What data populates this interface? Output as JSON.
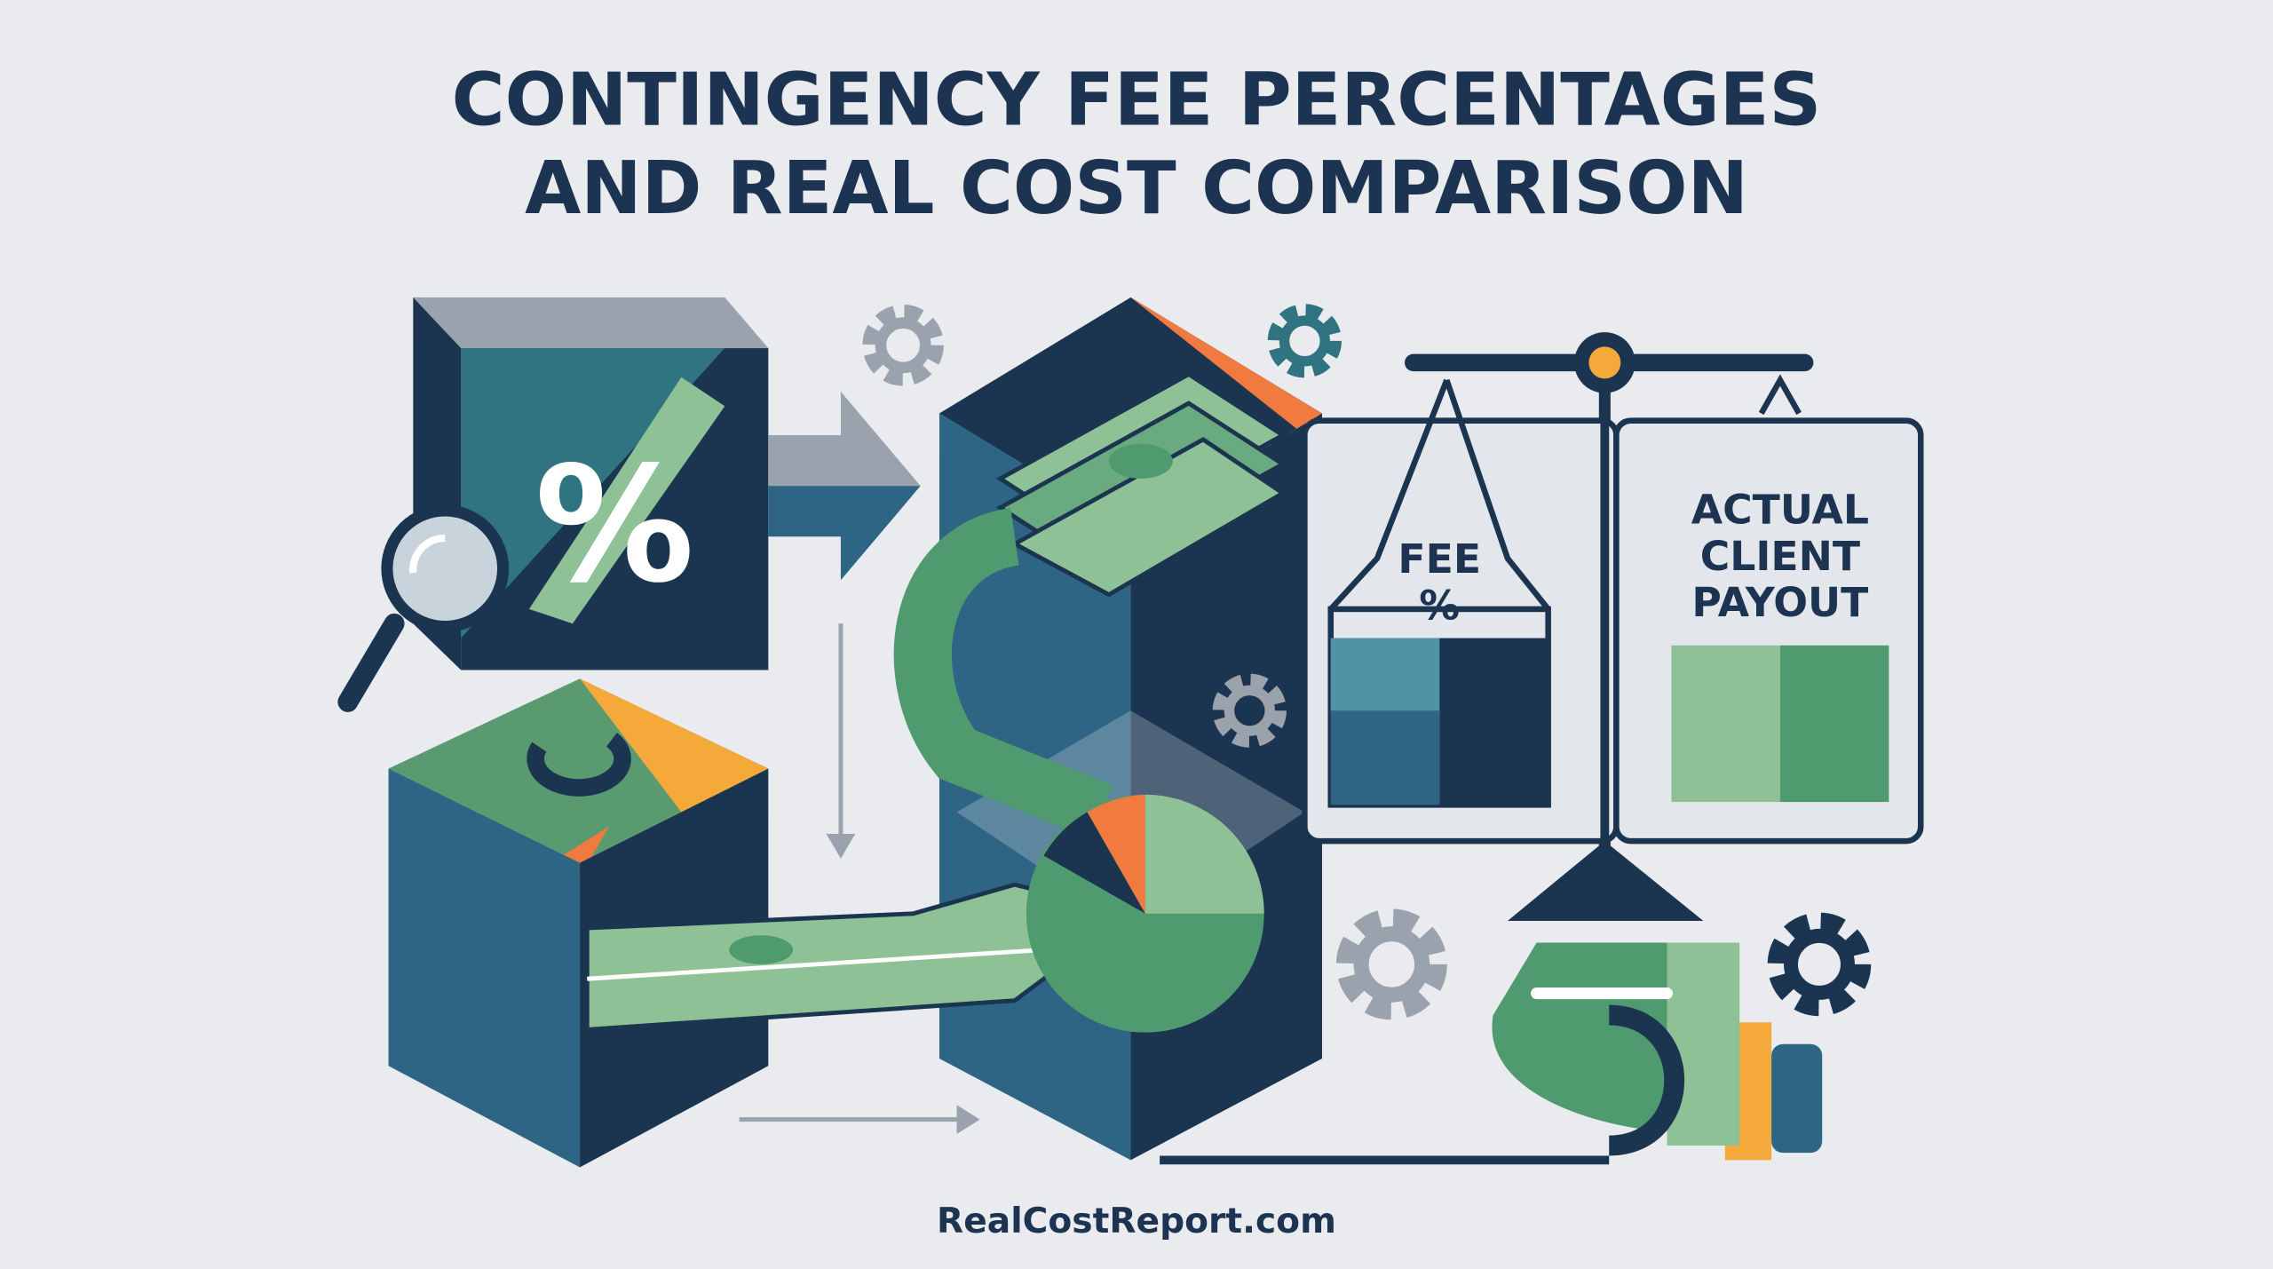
{
  "title": {
    "lines": [
      "CONTINGENCY FEE PERCENTAGES",
      "AND REAL COST COMPARISON"
    ]
  },
  "illustration": {
    "percent_symbol": "%",
    "scale": {
      "left_label": [
        "FEE",
        "%"
      ],
      "right_label": [
        "ACTUAL",
        "CLIENT",
        "PAYOUT"
      ]
    }
  },
  "footer": {
    "site": "RealCostReport.com"
  }
}
